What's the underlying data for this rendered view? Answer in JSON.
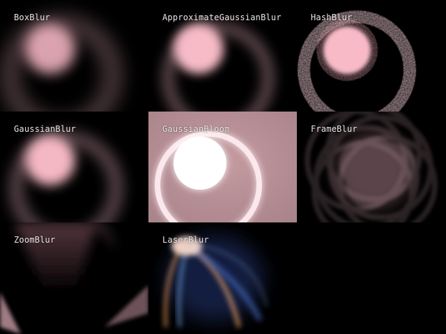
{
  "tiles": [
    {
      "label": "BoxBlur"
    },
    {
      "label": "ApproximateGaussianBlur"
    },
    {
      "label": "HashBlur"
    },
    {
      "label": "GaussianBlur"
    },
    {
      "label": "GaussianBloom"
    },
    {
      "label": "FrameBlur"
    },
    {
      "label": "ZoomBlur"
    },
    {
      "label": "LaserBlur"
    }
  ],
  "colors": {
    "background": "#000000",
    "pink": "#f7b8c4",
    "bloom_bg": "#b88f95",
    "label": "#ece6e7"
  }
}
